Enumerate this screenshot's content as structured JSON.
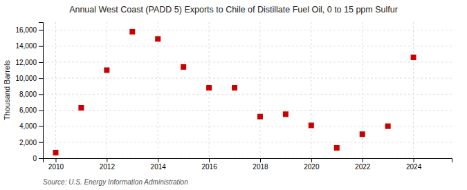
{
  "chart_data": {
    "type": "scatter",
    "title": "Annual West Coast (PADD 5) Exports to Chile of Distillate Fuel Oil, 0 to 15 ppm Sulfur",
    "ylabel": "Thousand Barrels",
    "source": "Source: U.S. Energy Information Administration",
    "x": [
      2010,
      2011,
      2012,
      2013,
      2014,
      2015,
      2016,
      2017,
      2018,
      2019,
      2020,
      2021,
      2022,
      2023,
      2024
    ],
    "values": [
      700,
      6300,
      11000,
      15800,
      14900,
      11400,
      8800,
      8800,
      5200,
      5500,
      4100,
      1300,
      3000,
      4000,
      12600
    ],
    "color": "#cc0000",
    "marker": "square",
    "xlim": [
      2009.5,
      2025.5
    ],
    "xticks": [
      2010,
      2012,
      2014,
      2016,
      2018,
      2020,
      2022,
      2024
    ],
    "ylim": [
      0,
      17000
    ],
    "yticks": [
      0,
      {
        "value": 2000,
        "label": "2,000"
      },
      {
        "value": 4000,
        "label": "4,000"
      },
      {
        "value": 6000,
        "label": "6,000"
      },
      {
        "value": 8000,
        "label": "8,000"
      },
      {
        "value": 10000,
        "label": "10,000"
      },
      {
        "value": 12000,
        "label": "12,000"
      },
      {
        "value": 14000,
        "label": "14,000"
      },
      {
        "value": 16000,
        "label": "16,000"
      }
    ],
    "grid": true
  }
}
